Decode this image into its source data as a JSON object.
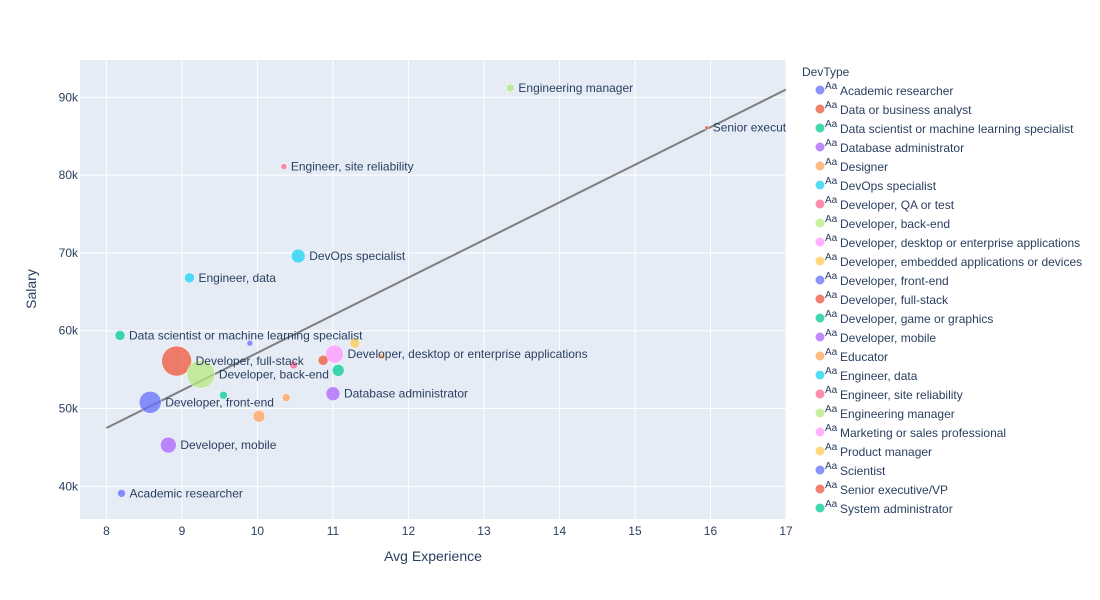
{
  "chart_data": {
    "type": "scatter",
    "xlabel": "Avg Experience",
    "ylabel": "Salary",
    "xlim": [
      7.65,
      17
    ],
    "ylim": [
      35800,
      94800
    ],
    "x_ticks": [
      8,
      9,
      10,
      11,
      12,
      13,
      14,
      15,
      16,
      17
    ],
    "y_ticks": [
      40000,
      50000,
      60000,
      70000,
      80000,
      90000
    ],
    "y_tick_labels": [
      "40k",
      "50k",
      "60k",
      "70k",
      "80k",
      "90k"
    ],
    "legend_title": "DevType",
    "legend_placement": "right",
    "legend_symbol_text": "Aa",
    "grid": true,
    "trendline": {
      "x": [
        8,
        17
      ],
      "y": [
        47500,
        91000
      ],
      "color": "#7f7f7f"
    },
    "series": [
      {
        "name": "Academic researcher",
        "color": "#636efa",
        "x": 8.2,
        "y": 39100,
        "size": 4,
        "label": "Academic researcher"
      },
      {
        "name": "Data or business analyst",
        "color": "#EF553B",
        "x": 10.87,
        "y": 56200,
        "size": 5,
        "label": ""
      },
      {
        "name": "Data scientist or machine learning specialist",
        "color": "#00cc96",
        "x": 8.18,
        "y": 59400,
        "size": 5,
        "label": "Data scientist or machine learning specialist"
      },
      {
        "name": "Database administrator",
        "color": "#ab63fa",
        "x": 11.0,
        "y": 51900,
        "size": 7,
        "label": "Database administrator"
      },
      {
        "name": "Designer",
        "color": "#FFA15A",
        "x": 10.02,
        "y": 49000,
        "size": 6,
        "label": ""
      },
      {
        "name": "DevOps specialist",
        "color": "#19d3f3",
        "x": 10.54,
        "y": 69600,
        "size": 7,
        "label": "DevOps specialist"
      },
      {
        "name": "Developer, QA or test",
        "color": "#FF6692",
        "x": 10.48,
        "y": 55600,
        "size": 4,
        "label": ""
      },
      {
        "name": "Developer, back-end",
        "color": "#B6E880",
        "x": 9.25,
        "y": 54400,
        "size": 14,
        "label": "Developer, back-end"
      },
      {
        "name": "Developer, desktop or enterprise applications",
        "color": "#FF97FF",
        "x": 11.02,
        "y": 57000,
        "size": 9,
        "label": "Developer, desktop or enterprise applications"
      },
      {
        "name": "Developer, embedded applications or devices",
        "color": "#FECB52",
        "x": 11.29,
        "y": 58400,
        "size": 5,
        "label": ""
      },
      {
        "name": "Developer, front-end",
        "color": "#636efa",
        "x": 8.58,
        "y": 50800,
        "size": 11,
        "label": "Developer, front-end"
      },
      {
        "name": "Developer, full-stack",
        "color": "#EF553B",
        "x": 8.93,
        "y": 56100,
        "size": 15,
        "label": "Developer, full-stack"
      },
      {
        "name": "Developer, game or graphics",
        "color": "#00cc96",
        "x": 11.07,
        "y": 54900,
        "size": 6,
        "label": ""
      },
      {
        "name": "Developer, mobile",
        "color": "#ab63fa",
        "x": 8.82,
        "y": 45300,
        "size": 8,
        "label": "Developer, mobile"
      },
      {
        "name": "Educator",
        "color": "#FFA15A",
        "x": 10.38,
        "y": 51400,
        "size": 4,
        "label": ""
      },
      {
        "name": "Engineer, data",
        "color": "#19d3f3",
        "x": 9.1,
        "y": 66800,
        "size": 5,
        "label": "Engineer, data"
      },
      {
        "name": "Engineer, site reliability",
        "color": "#FF6692",
        "x": 10.35,
        "y": 81100,
        "size": 3,
        "label": "Engineer, site reliability"
      },
      {
        "name": "Engineering manager",
        "color": "#B6E880",
        "x": 13.35,
        "y": 91200,
        "size": 4,
        "label": "Engineering manager"
      },
      {
        "name": "Marketing or sales professional",
        "color": "#FF97FF",
        "x": 11.63,
        "y": 56700,
        "size": 3,
        "label": ""
      },
      {
        "name": "Product manager",
        "color": "#FECB52",
        "x": 11.65,
        "y": 56700,
        "size": 3,
        "label": ""
      },
      {
        "name": "Scientist",
        "color": "#636efa",
        "x": 9.9,
        "y": 58400,
        "size": 3,
        "label": ""
      },
      {
        "name": "Senior executive/VP",
        "color": "#EF553B",
        "x": 15.95,
        "y": 86100,
        "size": 2,
        "label": "Senior executive/VP"
      },
      {
        "name": "System administrator",
        "color": "#00cc96",
        "x": 9.55,
        "y": 51700,
        "size": 4,
        "label": ""
      }
    ]
  }
}
